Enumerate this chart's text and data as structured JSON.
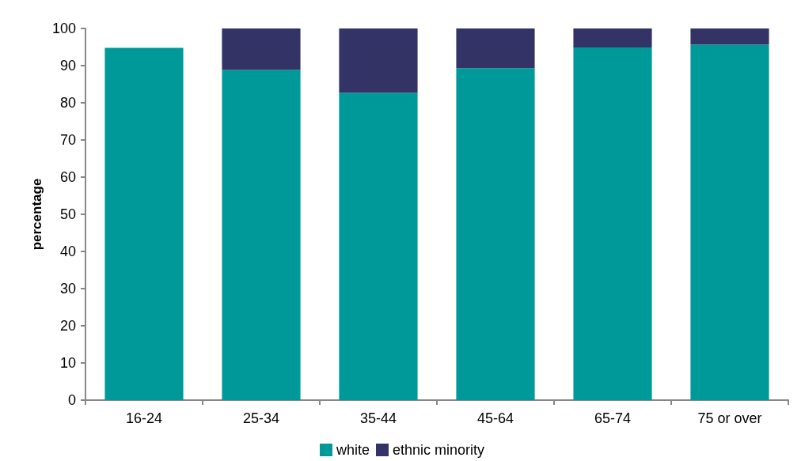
{
  "chart_data": {
    "type": "bar",
    "stacked": true,
    "ylabel": "percentage",
    "categories": [
      "16-24",
      "25-34",
      "35-44",
      "45-64",
      "65-74",
      "75 or over"
    ],
    "series": [
      {
        "name": "white",
        "color": "#009999",
        "values": [
          94.8,
          88.9,
          82.7,
          89.3,
          94.9,
          95.7
        ]
      },
      {
        "name": "ethnic minority",
        "color": "#333366",
        "values": [
          null,
          11.1,
          17.3,
          10.7,
          5.1,
          4.3
        ]
      }
    ],
    "ylim": [
      0,
      100
    ],
    "yticks": [
      0,
      10,
      20,
      30,
      40,
      50,
      60,
      70,
      80,
      90,
      100
    ],
    "grid": false,
    "legend": "bottom"
  }
}
